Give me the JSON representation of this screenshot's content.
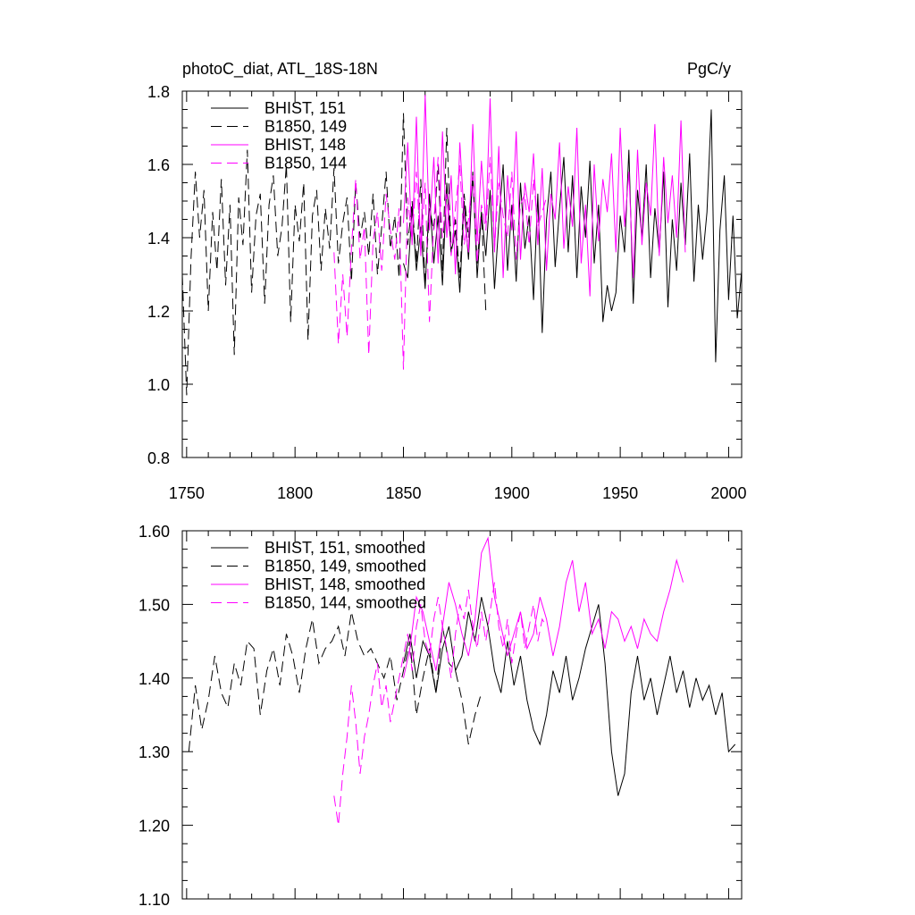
{
  "chart_data": [
    {
      "type": "line",
      "title": "photoC_diat, ATL_18S-18N",
      "units": "PgC/y",
      "xlabel": "",
      "ylabel": "",
      "xlim": [
        1748,
        2006
      ],
      "ylim": [
        0.8,
        1.8
      ],
      "xticks": [
        1750,
        1800,
        1850,
        1900,
        1950,
        2000
      ],
      "xtick_labels": [
        "1750",
        "1800",
        "1850",
        "1900",
        "1950",
        "2000"
      ],
      "yticks": [
        0.8,
        1.0,
        1.2,
        1.4,
        1.6,
        1.8
      ],
      "ytick_labels": [
        "0.8",
        "1.0",
        "1.2",
        "1.4",
        "1.6",
        "1.8"
      ],
      "legend_position": "top-left",
      "series": [
        {
          "name": "BHIST, 151",
          "color": "#000000",
          "dash": "solid",
          "x": [
            1850,
            1852,
            1854,
            1856,
            1858,
            1860,
            1862,
            1864,
            1866,
            1868,
            1870,
            1872,
            1874,
            1876,
            1878,
            1880,
            1882,
            1884,
            1886,
            1888,
            1890,
            1892,
            1894,
            1896,
            1898,
            1900,
            1902,
            1904,
            1906,
            1908,
            1910,
            1912,
            1914,
            1916,
            1918,
            1920,
            1922,
            1924,
            1926,
            1928,
            1930,
            1932,
            1934,
            1936,
            1938,
            1940,
            1942,
            1944,
            1946,
            1948,
            1950,
            1952,
            1954,
            1956,
            1958,
            1960,
            1962,
            1964,
            1966,
            1968,
            1970,
            1972,
            1974,
            1976,
            1978,
            1980,
            1982,
            1984,
            1986,
            1988,
            1990,
            1992,
            1994,
            1996,
            1998,
            2000,
            2002,
            2004,
            2006
          ],
          "values": [
            1.33,
            1.29,
            1.48,
            1.31,
            1.43,
            1.26,
            1.52,
            1.33,
            1.46,
            1.27,
            1.55,
            1.36,
            1.42,
            1.25,
            1.5,
            1.34,
            1.58,
            1.29,
            1.47,
            1.35,
            1.53,
            1.26,
            1.44,
            1.6,
            1.31,
            1.49,
            1.28,
            1.55,
            1.37,
            1.46,
            1.23,
            1.52,
            1.14,
            1.45,
            1.58,
            1.32,
            1.48,
            1.62,
            1.36,
            1.57,
            1.29,
            1.54,
            1.4,
            1.61,
            1.33,
            1.49,
            1.17,
            1.27,
            1.2,
            1.25,
            1.46,
            1.36,
            1.64,
            1.22,
            1.53,
            1.4,
            1.6,
            1.29,
            1.48,
            1.36,
            1.58,
            1.21,
            1.45,
            1.31,
            1.55,
            1.38,
            1.63,
            1.28,
            1.49,
            1.34,
            1.47,
            1.75,
            1.06,
            1.42,
            1.57,
            1.23,
            1.46,
            1.18,
            1.31
          ]
        },
        {
          "name": "B1850, 149",
          "color": "#000000",
          "dash": "dashed",
          "x": [
            1748,
            1750,
            1752,
            1754,
            1756,
            1758,
            1760,
            1762,
            1764,
            1766,
            1768,
            1770,
            1772,
            1774,
            1776,
            1778,
            1780,
            1782,
            1784,
            1786,
            1788,
            1790,
            1792,
            1794,
            1796,
            1798,
            1800,
            1802,
            1804,
            1806,
            1808,
            1810,
            1812,
            1814,
            1816,
            1818,
            1820,
            1822,
            1824,
            1826,
            1828,
            1830,
            1832,
            1834,
            1836,
            1838,
            1840,
            1842,
            1844,
            1846,
            1848,
            1850,
            1852,
            1854,
            1856,
            1858,
            1860,
            1862,
            1864,
            1866,
            1868,
            1870,
            1872,
            1874,
            1876,
            1878,
            1880,
            1882,
            1884,
            1886,
            1888
          ],
          "values": [
            1.3,
            0.97,
            1.34,
            1.58,
            1.4,
            1.53,
            1.2,
            1.47,
            1.31,
            1.56,
            1.27,
            1.49,
            1.08,
            1.51,
            1.38,
            1.64,
            1.25,
            1.46,
            1.52,
            1.22,
            1.49,
            1.57,
            1.35,
            1.43,
            1.6,
            1.17,
            1.49,
            1.39,
            1.55,
            1.12,
            1.46,
            1.53,
            1.31,
            1.48,
            1.37,
            1.59,
            1.33,
            1.44,
            1.51,
            1.28,
            1.55,
            1.4,
            1.47,
            1.35,
            1.52,
            1.3,
            1.43,
            1.58,
            1.37,
            1.46,
            1.29,
            1.74,
            1.38,
            1.5,
            1.33,
            1.56,
            1.27,
            1.48,
            1.42,
            1.6,
            1.31,
            1.7,
            1.36,
            1.45,
            1.29,
            1.52,
            1.4,
            1.57,
            1.33,
            1.47,
            1.2
          ]
        },
        {
          "name": "BHIST, 148",
          "color": "#ff00ff",
          "dash": "solid",
          "x": [
            1850,
            1852,
            1854,
            1856,
            1858,
            1860,
            1862,
            1864,
            1866,
            1868,
            1870,
            1872,
            1874,
            1876,
            1878,
            1880,
            1882,
            1884,
            1886,
            1888,
            1890,
            1892,
            1894,
            1896,
            1898,
            1900,
            1902,
            1904,
            1906,
            1908,
            1910,
            1912,
            1914,
            1916,
            1918,
            1920,
            1922,
            1924,
            1926,
            1928,
            1930,
            1932,
            1934,
            1936,
            1938,
            1940,
            1942,
            1944,
            1946,
            1948,
            1950,
            1952,
            1954,
            1956,
            1958,
            1960,
            1962,
            1964,
            1966,
            1968,
            1970,
            1972,
            1974,
            1976,
            1978,
            1980
          ],
          "values": [
            1.44,
            1.66,
            1.38,
            1.73,
            1.35,
            1.79,
            1.42,
            1.62,
            1.33,
            1.69,
            1.4,
            1.57,
            1.3,
            1.66,
            1.46,
            1.36,
            1.71,
            1.39,
            1.61,
            1.44,
            1.78,
            1.36,
            1.65,
            1.29,
            1.57,
            1.42,
            1.69,
            1.34,
            1.55,
            1.47,
            1.63,
            1.38,
            1.59,
            1.31,
            1.52,
            1.45,
            1.66,
            1.37,
            1.54,
            1.43,
            1.7,
            1.33,
            1.49,
            1.24,
            1.6,
            1.39,
            1.56,
            1.47,
            1.63,
            1.36,
            1.7,
            1.43,
            1.58,
            1.29,
            1.64,
            1.38,
            1.55,
            1.46,
            1.71,
            1.35,
            1.62,
            1.44,
            1.57,
            1.4,
            1.72,
            1.36
          ]
        },
        {
          "name": "B1850, 144",
          "color": "#ff00ff",
          "dash": "dashed",
          "x": [
            1818,
            1820,
            1822,
            1824,
            1826,
            1828,
            1830,
            1832,
            1834,
            1836,
            1838,
            1840,
            1842,
            1844,
            1846,
            1848,
            1850,
            1852,
            1854,
            1856,
            1858,
            1860,
            1862,
            1864,
            1866,
            1868,
            1870,
            1872,
            1874,
            1876,
            1878,
            1880,
            1882,
            1884,
            1886,
            1888,
            1890,
            1892,
            1894,
            1896,
            1898,
            1900,
            1902,
            1904,
            1906,
            1908,
            1910,
            1912,
            1914,
            1916
          ],
          "values": [
            1.36,
            1.11,
            1.3,
            1.13,
            1.37,
            1.56,
            1.34,
            1.43,
            1.08,
            1.39,
            1.47,
            1.31,
            1.52,
            1.42,
            1.34,
            1.48,
            1.04,
            1.51,
            1.39,
            1.58,
            1.36,
            1.55,
            1.17,
            1.44,
            1.62,
            1.4,
            1.52,
            1.35,
            1.48,
            1.6,
            1.38,
            1.45,
            1.57,
            1.33,
            1.49,
            1.42,
            1.62,
            1.37,
            1.55,
            1.46,
            1.4,
            1.58,
            1.34,
            1.49,
            1.52,
            1.38,
            1.56,
            1.43,
            1.47,
            1.51
          ]
        }
      ]
    },
    {
      "type": "line",
      "title": "",
      "xlabel": "",
      "ylabel": "",
      "xlim": [
        1748,
        2006
      ],
      "ylim": [
        1.1,
        1.6
      ],
      "xticks": [
        1750,
        1800,
        1850,
        1900,
        1950,
        2000
      ],
      "yticks": [
        1.1,
        1.2,
        1.3,
        1.4,
        1.5,
        1.6
      ],
      "ytick_labels": [
        "1.10",
        "1.20",
        "1.30",
        "1.40",
        "1.50",
        "1.60"
      ],
      "legend_position": "top-left",
      "series": [
        {
          "name": "BHIST, 151, smoothed",
          "color": "#000000",
          "dash": "solid",
          "x": [
            1850,
            1853,
            1856,
            1859,
            1862,
            1865,
            1868,
            1871,
            1874,
            1877,
            1880,
            1883,
            1886,
            1889,
            1892,
            1895,
            1898,
            1901,
            1904,
            1907,
            1910,
            1913,
            1916,
            1919,
            1922,
            1925,
            1928,
            1931,
            1934,
            1937,
            1940,
            1943,
            1946,
            1949,
            1952,
            1955,
            1958,
            1961,
            1964,
            1967,
            1970,
            1973,
            1976,
            1979,
            1982,
            1985,
            1988,
            1991,
            1994,
            1997,
            2000,
            2003
          ],
          "values": [
            1.42,
            1.46,
            1.4,
            1.45,
            1.43,
            1.38,
            1.44,
            1.47,
            1.41,
            1.43,
            1.49,
            1.45,
            1.51,
            1.47,
            1.41,
            1.38,
            1.45,
            1.39,
            1.43,
            1.37,
            1.33,
            1.31,
            1.35,
            1.41,
            1.38,
            1.43,
            1.37,
            1.4,
            1.44,
            1.47,
            1.5,
            1.42,
            1.3,
            1.24,
            1.27,
            1.38,
            1.43,
            1.37,
            1.4,
            1.35,
            1.39,
            1.43,
            1.38,
            1.41,
            1.36,
            1.4,
            1.37,
            1.39,
            1.35,
            1.38,
            1.3,
            1.31
          ]
        },
        {
          "name": "B1850, 149, smoothed",
          "color": "#000000",
          "dash": "dashed",
          "x": [
            1751,
            1754,
            1757,
            1760,
            1763,
            1766,
            1769,
            1772,
            1775,
            1778,
            1781,
            1784,
            1787,
            1790,
            1793,
            1796,
            1799,
            1802,
            1805,
            1808,
            1811,
            1814,
            1817,
            1820,
            1823,
            1826,
            1829,
            1832,
            1835,
            1838,
            1841,
            1844,
            1847,
            1850,
            1853,
            1856,
            1859,
            1862,
            1865,
            1868,
            1871,
            1874,
            1877,
            1880,
            1883,
            1886
          ],
          "values": [
            1.3,
            1.39,
            1.33,
            1.37,
            1.43,
            1.38,
            1.36,
            1.42,
            1.39,
            1.45,
            1.44,
            1.35,
            1.41,
            1.44,
            1.39,
            1.46,
            1.43,
            1.38,
            1.44,
            1.48,
            1.42,
            1.44,
            1.45,
            1.47,
            1.43,
            1.49,
            1.45,
            1.43,
            1.44,
            1.42,
            1.4,
            1.43,
            1.37,
            1.41,
            1.45,
            1.35,
            1.4,
            1.44,
            1.38,
            1.47,
            1.42,
            1.41,
            1.37,
            1.31,
            1.35,
            1.38
          ]
        },
        {
          "name": "BHIST, 148, smoothed",
          "color": "#ff00ff",
          "dash": "solid",
          "x": [
            1850,
            1853,
            1856,
            1859,
            1862,
            1865,
            1868,
            1871,
            1874,
            1877,
            1880,
            1883,
            1886,
            1889,
            1892,
            1895,
            1898,
            1901,
            1904,
            1907,
            1910,
            1913,
            1916,
            1919,
            1922,
            1925,
            1928,
            1931,
            1934,
            1937,
            1940,
            1943,
            1946,
            1949,
            1952,
            1955,
            1958,
            1961,
            1964,
            1967,
            1970,
            1973,
            1976,
            1979
          ],
          "values": [
            1.4,
            1.44,
            1.51,
            1.49,
            1.45,
            1.41,
            1.47,
            1.53,
            1.5,
            1.46,
            1.43,
            1.48,
            1.57,
            1.59,
            1.51,
            1.47,
            1.43,
            1.46,
            1.49,
            1.44,
            1.46,
            1.51,
            1.48,
            1.43,
            1.47,
            1.53,
            1.56,
            1.49,
            1.53,
            1.46,
            1.48,
            1.44,
            1.49,
            1.48,
            1.45,
            1.47,
            1.44,
            1.48,
            1.46,
            1.45,
            1.49,
            1.52,
            1.56,
            1.53
          ]
        },
        {
          "name": "B1850, 144, smoothed",
          "color": "#ff00ff",
          "dash": "dashed",
          "x": [
            1818,
            1820,
            1822,
            1824,
            1826,
            1828,
            1830,
            1832,
            1834,
            1836,
            1838,
            1840,
            1842,
            1844,
            1846,
            1848,
            1850,
            1852,
            1854,
            1856,
            1858,
            1860,
            1862,
            1864,
            1866,
            1868,
            1870,
            1872,
            1874,
            1876,
            1878,
            1880,
            1882,
            1884,
            1886,
            1888,
            1890,
            1892,
            1894,
            1896,
            1898,
            1900,
            1902,
            1904,
            1906,
            1908,
            1910,
            1912,
            1914,
            1916
          ],
          "values": [
            1.24,
            1.2,
            1.27,
            1.32,
            1.39,
            1.34,
            1.27,
            1.32,
            1.35,
            1.39,
            1.42,
            1.36,
            1.39,
            1.34,
            1.37,
            1.4,
            1.43,
            1.46,
            1.41,
            1.47,
            1.5,
            1.45,
            1.43,
            1.48,
            1.51,
            1.47,
            1.44,
            1.4,
            1.46,
            1.5,
            1.48,
            1.52,
            1.47,
            1.44,
            1.49,
            1.45,
            1.49,
            1.53,
            1.47,
            1.44,
            1.48,
            1.42,
            1.46,
            1.49,
            1.44,
            1.47,
            1.5,
            1.45,
            1.48,
            1.47
          ]
        }
      ]
    }
  ]
}
